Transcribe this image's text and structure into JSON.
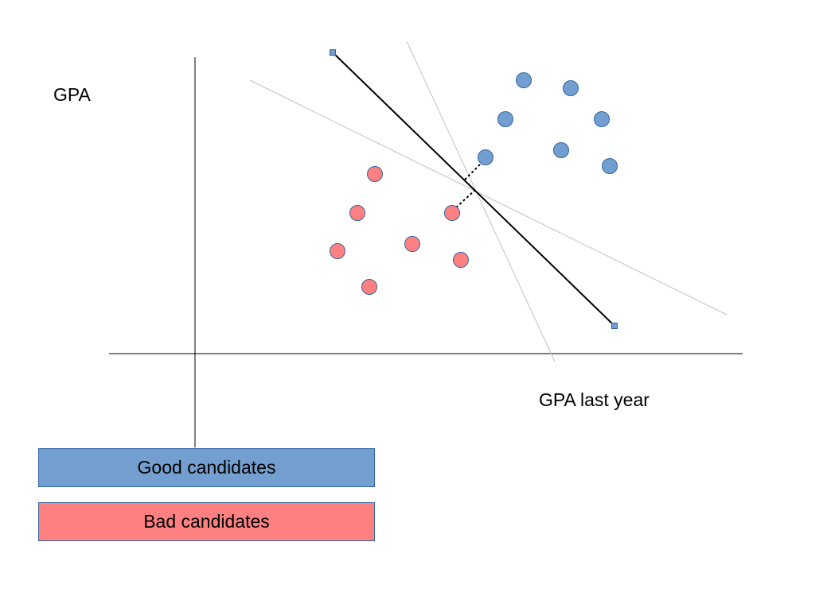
{
  "labels": {
    "y_axis": "GPA",
    "x_axis": "GPA last year"
  },
  "legend": {
    "good": "Good candidates",
    "bad": "Bad candidates"
  },
  "colors": {
    "good": "#729fcf",
    "bad": "#ff8080",
    "marker_stroke": "#3465a4",
    "axis": "#000000",
    "candidate_line": "#c0c0c0",
    "best_line": "#000000"
  }
}
